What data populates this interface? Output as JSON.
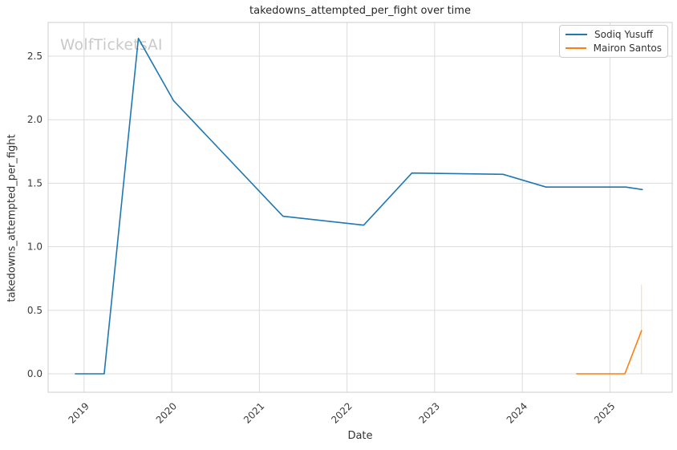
{
  "watermark": "WolfTicketsAI",
  "chart_data": {
    "type": "line",
    "title": "takedowns_attempted_per_fight over time",
    "xlabel": "Date",
    "ylabel": "takedowns_attempted_per_fight",
    "grid": true,
    "legend_position": "top-right",
    "xlim": [
      2018.59,
      2025.71
    ],
    "ylim": [
      -0.145,
      2.765
    ],
    "x_ticks": [
      {
        "label": "2019",
        "value": 2019
      },
      {
        "label": "2020",
        "value": 2020
      },
      {
        "label": "2021",
        "value": 2021
      },
      {
        "label": "2022",
        "value": 2022
      },
      {
        "label": "2023",
        "value": 2023
      },
      {
        "label": "2024",
        "value": 2024
      },
      {
        "label": "2025",
        "value": 2025
      }
    ],
    "y_ticks": [
      {
        "label": "0.0",
        "value": 0.0
      },
      {
        "label": "0.5",
        "value": 0.5
      },
      {
        "label": "1.0",
        "value": 1.0
      },
      {
        "label": "1.5",
        "value": 1.5
      },
      {
        "label": "2.0",
        "value": 2.0
      },
      {
        "label": "2.5",
        "value": 2.5
      }
    ],
    "series": [
      {
        "name": "Sodiq Yusuff",
        "color": "#1f77b4",
        "points": [
          [
            2018.9,
            0.0
          ],
          [
            2019.23,
            0.0
          ],
          [
            2019.62,
            2.64
          ],
          [
            2020.02,
            2.15
          ],
          [
            2021.27,
            1.24
          ],
          [
            2022.19,
            1.17
          ],
          [
            2022.74,
            1.58
          ],
          [
            2023.78,
            1.57
          ],
          [
            2024.27,
            1.47
          ],
          [
            2025.18,
            1.47
          ],
          [
            2025.37,
            1.45
          ]
        ]
      },
      {
        "name": "Mairon Santos",
        "color": "#ff7f0e",
        "points": [
          [
            2024.62,
            0.0
          ],
          [
            2025.17,
            0.0
          ],
          [
            2025.36,
            0.34
          ]
        ]
      }
    ],
    "annotations": [
      {
        "type": "vline",
        "x": 2025.36,
        "y0": 0.0,
        "y1": 0.7,
        "color": "#ff7f0e",
        "opacity": 0.35
      }
    ]
  }
}
